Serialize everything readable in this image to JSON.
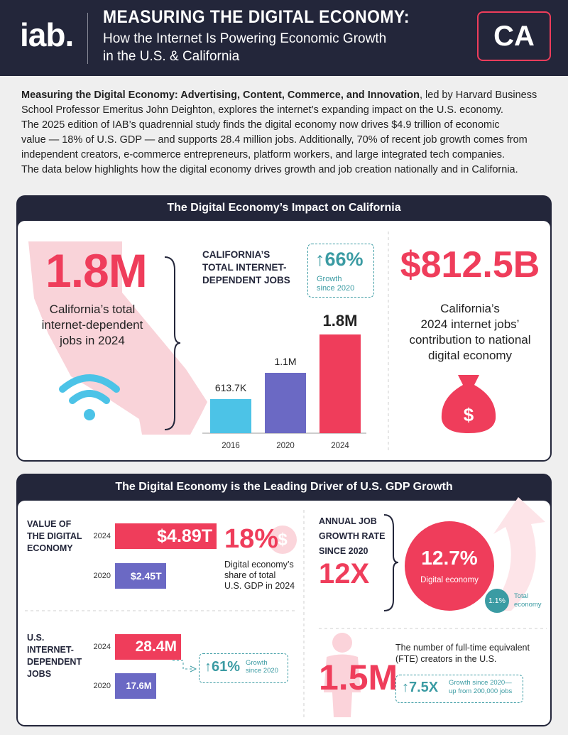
{
  "header": {
    "logo": "iab.",
    "title": "MEASURING THE DIGITAL ECONOMY:",
    "subtitle_lines": [
      "How the Internet Is Powering Economic Growth",
      "in the U.S. & California"
    ],
    "badge": "CA"
  },
  "intro": {
    "lead": "Measuring the Digital Economy: Advertising, Content, Commerce, and Innovation",
    "first_line_rest": ", led by Harvard Business",
    "lines": [
      "School Professor Emeritus John Deighton, explores the internet’s expanding impact on the U.S. economy.",
      "The 2025 edition of IAB’s quadrennial study finds the digital economy now drives $4.9 trillion of economic",
      "value — 18% of U.S. GDP — and supports 28.4 million jobs. Additionally, 70% of recent job growth comes from",
      "independent creators, e-commerce entrepreneurs, platform workers, and large integrated tech companies.",
      "The data below highlights how the digital economy drives growth and job creation nationally and in California."
    ]
  },
  "section1": {
    "title": "The Digital Economy’s Impact on California",
    "big_number": "1.8M",
    "big_caption_lines": [
      "California’s total",
      "internet-dependent",
      "jobs in 2024"
    ],
    "chart": {
      "type": "bar",
      "title_lines": [
        "CALIFORNIA’S",
        "TOTAL INTERNET-",
        "DEPENDENT JOBS"
      ],
      "growth": "66%",
      "growth_caption_lines": [
        "Growth",
        "since 2020"
      ],
      "categories": [
        "2016",
        "2020",
        "2024"
      ],
      "values": [
        613.7,
        1100,
        1800
      ],
      "value_labels": [
        "613.7K",
        "1.1M",
        "1.8M"
      ],
      "colors": [
        "#4cc3e7",
        "#6b69c4",
        "#ef3d5b"
      ]
    },
    "contribution": "$812.5B",
    "contribution_caption_lines": [
      "California’s",
      "2024 internet jobs’",
      "contribution to national",
      "digital economy"
    ]
  },
  "section2": {
    "title": "The Digital Economy is the Leading Driver of U.S. GDP Growth",
    "gdp": {
      "type": "bar",
      "label_lines": [
        "VALUE OF",
        "THE DIGITAL",
        "ECONOMY"
      ],
      "categories": [
        "2024",
        "2020"
      ],
      "values": [
        4.89,
        2.45
      ],
      "value_labels": [
        "$4.89T",
        "$2.45T"
      ],
      "colors": [
        "#ef3d5b",
        "#6b69c4"
      ],
      "share": "18%",
      "share_caption_lines": [
        "Digital economy’s",
        "share of total",
        "U.S. GDP in 2024"
      ]
    },
    "jobs": {
      "type": "bar",
      "label_lines": [
        "U.S.",
        "INTERNET-",
        "DEPENDENT",
        "JOBS"
      ],
      "categories": [
        "2024",
        "2020"
      ],
      "values": [
        28.4,
        17.6
      ],
      "value_labels": [
        "28.4M",
        "17.6M"
      ],
      "colors": [
        "#ef3d5b",
        "#6b69c4"
      ],
      "growth": "61%",
      "growth_caption_lines": [
        "Growth",
        "since 2020"
      ]
    },
    "growth_rate": {
      "label_lines": [
        "ANNUAL JOB",
        "GROWTH RATE",
        "SINCE 2020"
      ],
      "multiple": "12X",
      "digital_value": "12.7%",
      "digital_label": "Digital economy",
      "total_value": "1.1%",
      "total_label_lines": [
        "Total",
        "economy"
      ]
    },
    "creators": {
      "number": "1.5M",
      "caption_lines": [
        "The number of full-time equivalent",
        "(FTE) creators in the U.S."
      ],
      "growth": "7.5X",
      "growth_caption_lines": [
        "Growth since 2020—",
        "up from 200,000 jobs"
      ]
    }
  }
}
